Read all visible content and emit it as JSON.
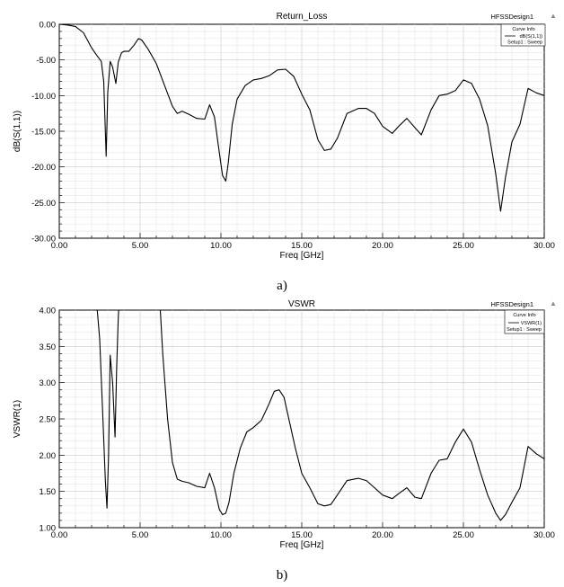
{
  "brand": "HFSSDesign1",
  "curve_info_title": "Curve Info",
  "captions": {
    "a": "a)",
    "b": "b)"
  },
  "chart_data": [
    {
      "type": "line",
      "title": "Return_Loss",
      "xlabel": "Freq [GHz]",
      "ylabel": "dB(S(1,1))",
      "xlim": [
        0,
        30
      ],
      "ylim": [
        -30,
        0
      ],
      "xticks": [
        "0.00",
        "5.00",
        "10.00",
        "15.00",
        "20.00",
        "25.00",
        "30.00"
      ],
      "yticks": [
        "0.00",
        "-5.00",
        "-10.00",
        "-15.00",
        "-20.00",
        "-25.00",
        "-30.00"
      ],
      "grid": true,
      "legend_position": "top-right",
      "legend": {
        "label": "dB(S(1,1))",
        "sub": "Setup1 : Sweep"
      },
      "series": [
        {
          "name": "dB(S(1,1))",
          "color": "#000000",
          "x": [
            0.0,
            0.5,
            1.0,
            1.5,
            2.0,
            2.3,
            2.6,
            2.75,
            2.9,
            3.0,
            3.15,
            3.3,
            3.5,
            3.65,
            3.85,
            4.0,
            4.3,
            4.6,
            4.9,
            5.1,
            5.5,
            6.0,
            6.5,
            7.0,
            7.3,
            7.6,
            8.0,
            8.5,
            9.0,
            9.3,
            9.6,
            9.9,
            10.1,
            10.3,
            10.45,
            10.7,
            11.0,
            11.5,
            12.0,
            12.5,
            13.0,
            13.5,
            14.0,
            14.5,
            15.0,
            15.5,
            16.0,
            16.4,
            16.8,
            17.2,
            17.8,
            18.5,
            19.0,
            19.5,
            20.0,
            20.6,
            21.0,
            21.5,
            22.0,
            22.4,
            23.0,
            23.5,
            24.0,
            24.5,
            25.0,
            25.5,
            26.0,
            26.5,
            27.0,
            27.3,
            27.6,
            28.0,
            28.5,
            29.0,
            29.5,
            30.0
          ],
          "y": [
            0.0,
            -0.1,
            -0.3,
            -1.2,
            -3.3,
            -4.3,
            -5.2,
            -8.0,
            -18.5,
            -9.5,
            -5.2,
            -6.0,
            -8.3,
            -5.3,
            -4.0,
            -3.8,
            -3.8,
            -3.0,
            -2.0,
            -2.2,
            -3.5,
            -5.5,
            -8.5,
            -11.5,
            -12.5,
            -12.2,
            -12.6,
            -13.2,
            -13.3,
            -11.3,
            -13.0,
            -18.0,
            -21.2,
            -22.0,
            -19.5,
            -14.0,
            -10.5,
            -8.6,
            -7.8,
            -7.6,
            -7.2,
            -6.4,
            -6.3,
            -7.3,
            -9.8,
            -12.0,
            -16.2,
            -17.7,
            -17.5,
            -16.0,
            -12.5,
            -11.8,
            -11.8,
            -12.5,
            -14.3,
            -15.3,
            -14.3,
            -13.2,
            -14.5,
            -15.5,
            -12.0,
            -10.0,
            -9.8,
            -9.3,
            -7.8,
            -8.3,
            -10.5,
            -14.2,
            -21.0,
            -26.2,
            -21.5,
            -16.5,
            -14.0,
            -9.0,
            -9.6,
            -10.0
          ]
        }
      ]
    },
    {
      "type": "line",
      "title": "VSWR",
      "xlabel": "Freq [GHz]",
      "ylabel": "VSWR(1)",
      "xlim": [
        0,
        30
      ],
      "ylim": [
        1,
        4
      ],
      "xticks": [
        "0.00",
        "5.00",
        "10.00",
        "15.00",
        "20.00",
        "25.00",
        "30.00"
      ],
      "yticks": [
        "4.00",
        "3.50",
        "3.00",
        "2.50",
        "2.00",
        "1.50",
        "1.00"
      ],
      "grid": true,
      "legend_position": "top-right",
      "legend": {
        "label": "VSWR(1)",
        "sub": "Setup1 : Sweep"
      },
      "series": [
        {
          "name": "VSWR(1)",
          "color": "#000000",
          "x": [
            2.35,
            2.5,
            2.7,
            2.85,
            2.95,
            3.05,
            3.15,
            3.3,
            3.45,
            3.55,
            3.65,
            3.72
          ],
          "y": [
            4.0,
            3.6,
            2.5,
            1.65,
            1.27,
            2.0,
            3.38,
            3.0,
            2.25,
            3.2,
            3.9,
            4.2
          ]
        },
        {
          "name": "VSWR(1)",
          "color": "#000000",
          "x": [
            6.2,
            6.4,
            6.7,
            7.0,
            7.3,
            7.6,
            8.0,
            8.5,
            9.0,
            9.3,
            9.6,
            9.9,
            10.1,
            10.3,
            10.5,
            10.8,
            11.2,
            11.6,
            12.0,
            12.5,
            13.0,
            13.3,
            13.6,
            13.9,
            14.2,
            14.6,
            15.0,
            15.5,
            16.0,
            16.4,
            16.8,
            17.2,
            17.8,
            18.5,
            19.0,
            19.5,
            20.0,
            20.6,
            21.0,
            21.5,
            22.0,
            22.4,
            23.0,
            23.5,
            24.0,
            24.5,
            25.0,
            25.5,
            26.0,
            26.5,
            27.0,
            27.3,
            27.6,
            28.0,
            28.5,
            29.0,
            29.5,
            30.0
          ],
          "y": [
            4.2,
            3.4,
            2.5,
            1.9,
            1.67,
            1.64,
            1.62,
            1.57,
            1.55,
            1.75,
            1.55,
            1.25,
            1.18,
            1.2,
            1.35,
            1.75,
            2.1,
            2.32,
            2.38,
            2.48,
            2.72,
            2.88,
            2.9,
            2.8,
            2.5,
            2.1,
            1.75,
            1.55,
            1.33,
            1.3,
            1.32,
            1.45,
            1.65,
            1.68,
            1.65,
            1.55,
            1.45,
            1.4,
            1.47,
            1.55,
            1.42,
            1.4,
            1.75,
            1.93,
            1.95,
            2.18,
            2.36,
            2.18,
            1.8,
            1.45,
            1.2,
            1.1,
            1.18,
            1.35,
            1.55,
            2.12,
            2.02,
            1.95
          ]
        }
      ]
    }
  ]
}
